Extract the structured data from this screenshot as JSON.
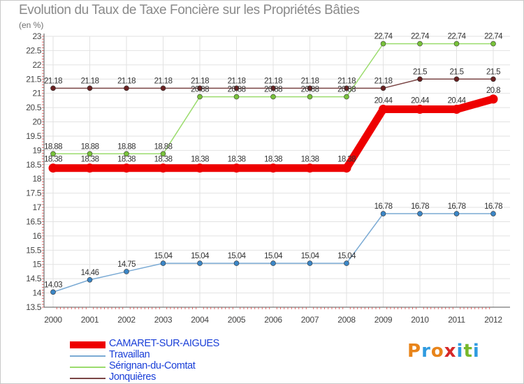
{
  "title": "Evolution du Taux de Taxe Foncière sur les Propriétés Bâties",
  "unit_label": "(en %)",
  "logo": {
    "text": "Proxiti",
    "letters": [
      "P",
      "r",
      "o",
      "x",
      "i",
      "t",
      "i"
    ],
    "letter_colors": [
      "#e8841a",
      "#2f9be0",
      "#e8841a",
      "#d62828",
      "#2f9be0",
      "#77b82a",
      "#2f9be0"
    ]
  },
  "chart_data": {
    "type": "line",
    "title": "Evolution du Taux de Taxe Foncière sur les Propriétés Bâties",
    "ylabel": "(en %)",
    "xlabel": "",
    "ylim": [
      13.5,
      23
    ],
    "y_ticks": [
      "13.5",
      "14",
      "14.5",
      "15",
      "15.5",
      "16",
      "16.5",
      "17",
      "17.5",
      "18",
      "18.5",
      "19",
      "19.5",
      "20",
      "20.5",
      "21",
      "21.5",
      "22",
      "22.5",
      "23"
    ],
    "x": [
      "2000",
      "2001",
      "2002",
      "2003",
      "2004",
      "2005",
      "2006",
      "2007",
      "2008",
      "2009",
      "2010",
      "2011",
      "2012"
    ],
    "grid": true,
    "legend_position": "bottom-left",
    "series": [
      {
        "name": "Jonquières",
        "color": "#6b2222",
        "line_color": "#7a4545",
        "values": [
          21.18,
          21.18,
          21.18,
          21.18,
          21.18,
          21.18,
          21.18,
          21.18,
          21.18,
          21.18,
          21.5,
          21.5,
          21.5
        ],
        "labels": [
          "21.18",
          "21.18",
          "21.18",
          "21.18",
          "21.18",
          "21.18",
          "21.18",
          "21.18",
          "21.18",
          "21.18",
          "21.5",
          "21.5",
          "21.5"
        ],
        "bold": false
      },
      {
        "name": "Sérignan-du-Comtat",
        "color": "#78c23a",
        "line_color": "#9bdc6d",
        "values": [
          18.88,
          18.88,
          18.88,
          18.88,
          20.88,
          20.88,
          20.88,
          20.88,
          20.88,
          22.74,
          22.74,
          22.74,
          22.74
        ],
        "labels": [
          "18.88",
          "18.88",
          "18.88",
          "18.88",
          "20.88",
          "20.88",
          "20.88",
          "20.88",
          "20.88",
          "22.74",
          "22.74",
          "22.74",
          "22.74"
        ],
        "bold": false
      },
      {
        "name": "Travaillan",
        "color": "#3b86c6",
        "line_color": "#7aaad4",
        "values": [
          14.03,
          14.46,
          14.75,
          15.04,
          15.04,
          15.04,
          15.04,
          15.04,
          15.04,
          16.78,
          16.78,
          16.78,
          16.78
        ],
        "labels": [
          "14.03",
          "14.46",
          "14.75",
          "15.04",
          "15.04",
          "15.04",
          "15.04",
          "15.04",
          "15.04",
          "16.78",
          "16.78",
          "16.78",
          "16.78"
        ],
        "bold": false
      },
      {
        "name": "CAMARET-SUR-AIGUES",
        "color": "#ee0000",
        "line_color": "#ee0000",
        "values": [
          18.38,
          18.38,
          18.38,
          18.38,
          18.38,
          18.38,
          18.38,
          18.38,
          18.38,
          20.44,
          20.44,
          20.44,
          20.8
        ],
        "labels": [
          "18.38",
          "18.38",
          "18.38",
          "18.38",
          "18.38",
          "18.38",
          "18.38",
          "18.38",
          "18.38",
          "20.44",
          "20.44",
          "20.44",
          "20.8"
        ],
        "bold": true
      }
    ],
    "legend_order": [
      "CAMARET-SUR-AIGUES",
      "Travaillan",
      "Sérignan-du-Comtat",
      "Jonquières"
    ]
  }
}
